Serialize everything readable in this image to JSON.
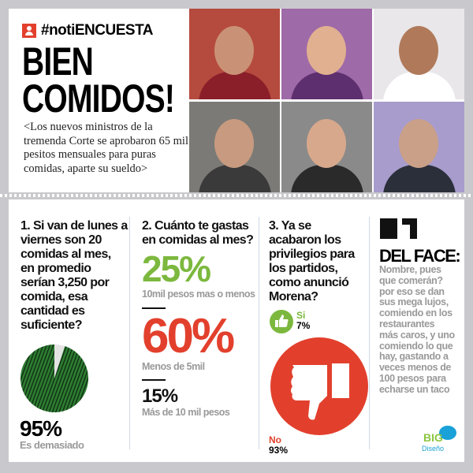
{
  "header": {
    "hashtag": "#notiENCUESTA",
    "hashtag_icon": "user-icon",
    "title_line1": "BIEN",
    "title_line2": "COMIDOS!",
    "subtitle": "<Los nuevos ministros de la tremenda Corte se aprobaron 65 mil pesitos mensuales para puras comidas, aparte su sueldo>"
  },
  "photos": [
    {
      "bg": "#b54a3e",
      "skin": "#c99276",
      "clothes": "#8a1f2a"
    },
    {
      "bg": "#9f6aa8",
      "skin": "#e0b090",
      "clothes": "#5e2f6e"
    },
    {
      "bg": "#e9e7ea",
      "skin": "#b07a5a",
      "clothes": "#ffffff"
    },
    {
      "bg": "#7b7a76",
      "skin": "#c89a80",
      "clothes": "#3a3a3a"
    },
    {
      "bg": "#8a8a8a",
      "skin": "#d7a88c",
      "clothes": "#2a2a2a"
    },
    {
      "bg": "#a79ccc",
      "skin": "#caa088",
      "clothes": "#2b2f3a"
    }
  ],
  "q1": {
    "question": [
      "1. Si van de lunes a",
      "viernes son 20",
      "comidas al mes,",
      "en promedio",
      "serían 3,250 por",
      "comida, esa",
      "cantidad es",
      "suficiente?"
    ],
    "percent": "95%",
    "percent_value": 95,
    "label": "Es demasiado",
    "pie_color": "#2e7d32",
    "rest_color": "#e3e3e3"
  },
  "q2": {
    "question": [
      "2. Cuánto te gastas",
      "en comidas al mes?"
    ],
    "answers": [
      {
        "percent": "25%",
        "label": "10mil pesos mas o menos",
        "color": "#7cb83e"
      },
      {
        "percent": "60%",
        "label": "Menos de 5mil",
        "color": "#e2402d"
      },
      {
        "percent": "15%",
        "label": "Más de 10 mil pesos",
        "color": "#111111"
      }
    ]
  },
  "q3": {
    "question": [
      "3. Ya se",
      "acabaron los",
      "privilegios para",
      "los partidos,",
      "como anunció",
      "Morena?"
    ],
    "yes_label": "Si",
    "yes_percent": "7%",
    "no_label": "No",
    "no_percent": "93%",
    "yes_color": "#7cb83e",
    "no_color": "#e2402d"
  },
  "face": {
    "icon": "facebook-icon",
    "title": "DEL FACE:",
    "comment": [
      "Nombre, pues",
      "que comerán?",
      "por eso se dan",
      "sus mega lujos,",
      "comiendo en los",
      "restaurantes",
      "más caros, y uno",
      "comiendo lo que",
      "hay, gastando a",
      "veces menos de",
      "100 pesos para",
      "echarse un taco"
    ]
  },
  "logo": {
    "text1": "BIG",
    "text2": "Diseño"
  }
}
